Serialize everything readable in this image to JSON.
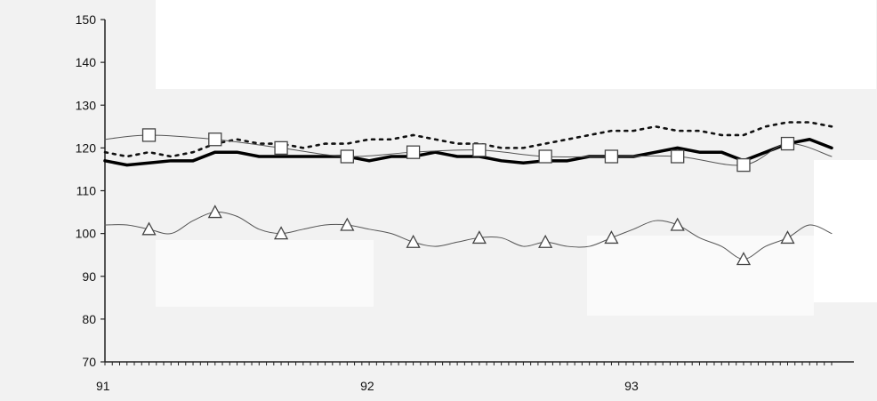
{
  "chart_data": {
    "type": "line",
    "title": "",
    "xlabel": "",
    "ylabel": "",
    "ylim": [
      70,
      150
    ],
    "yticks": [
      70,
      80,
      90,
      100,
      110,
      120,
      130,
      140,
      150
    ],
    "xlim": [
      0,
      33
    ],
    "xtick_labels": [
      {
        "label": "91",
        "x": 0
      },
      {
        "label": "92",
        "x": 12
      },
      {
        "label": "93",
        "x": 24
      }
    ],
    "grid": false,
    "legend": "none",
    "series": [
      {
        "style": "dotted",
        "color": "#111111",
        "x": [
          0,
          1,
          2,
          3,
          4,
          5,
          6,
          7,
          8,
          9,
          10,
          11,
          12,
          13,
          14,
          15,
          16,
          17,
          18,
          19,
          20,
          21,
          22,
          23,
          24,
          25,
          26,
          27,
          28,
          29,
          30,
          31,
          32,
          33
        ],
        "values": [
          119,
          118,
          119,
          118,
          119,
          121,
          122,
          121,
          121,
          120,
          121,
          121,
          122,
          122,
          123,
          122,
          121,
          121,
          120,
          120,
          121,
          122,
          123,
          124,
          124,
          125,
          124,
          124,
          123,
          123,
          125,
          126,
          126,
          125
        ]
      },
      {
        "style": "thick",
        "color": "#000000",
        "x": [
          0,
          1,
          2,
          3,
          4,
          5,
          6,
          7,
          8,
          9,
          10,
          11,
          12,
          13,
          14,
          15,
          16,
          17,
          18,
          19,
          20,
          21,
          22,
          23,
          24,
          25,
          26,
          27,
          28,
          29,
          30,
          31,
          32,
          33
        ],
        "values": [
          117,
          116,
          116.5,
          117,
          117,
          119,
          119,
          118,
          118,
          118,
          118,
          118,
          117,
          118,
          118,
          119,
          118,
          118,
          117,
          116.5,
          117,
          117,
          118,
          118,
          118,
          119,
          120,
          119,
          119,
          117,
          119,
          121,
          122,
          120
        ]
      },
      {
        "style": "thin-square",
        "color": "#555555",
        "marker": "square",
        "x": [
          0,
          2,
          5,
          8,
          11,
          14,
          17,
          20,
          23,
          26,
          29,
          31,
          33
        ],
        "values": [
          122,
          123,
          122,
          120,
          118,
          119,
          119.5,
          118,
          118,
          118,
          116,
          121,
          118
        ],
        "marker_indices": [
          1,
          2,
          3,
          4,
          5,
          6,
          7,
          8,
          9,
          10,
          11
        ]
      },
      {
        "style": "thin-triangle",
        "color": "#555555",
        "marker": "triangle",
        "x": [
          0,
          1,
          2,
          3,
          4,
          5,
          6,
          7,
          8,
          9,
          10,
          11,
          12,
          13,
          14,
          15,
          16,
          17,
          18,
          19,
          20,
          21,
          22,
          23,
          24,
          25,
          26,
          27,
          28,
          29,
          30,
          31,
          32,
          33
        ],
        "values": [
          102,
          102,
          101,
          100,
          103,
          105,
          104,
          101,
          100,
          101,
          102,
          102,
          101,
          100,
          98,
          97,
          98,
          99,
          99,
          97,
          98,
          97,
          97,
          99,
          101,
          103,
          102,
          99,
          97,
          94,
          97,
          99,
          102,
          100
        ],
        "marker_indices": [
          2,
          5,
          8,
          11,
          14,
          17,
          20,
          23,
          26,
          29,
          31
        ]
      }
    ]
  }
}
